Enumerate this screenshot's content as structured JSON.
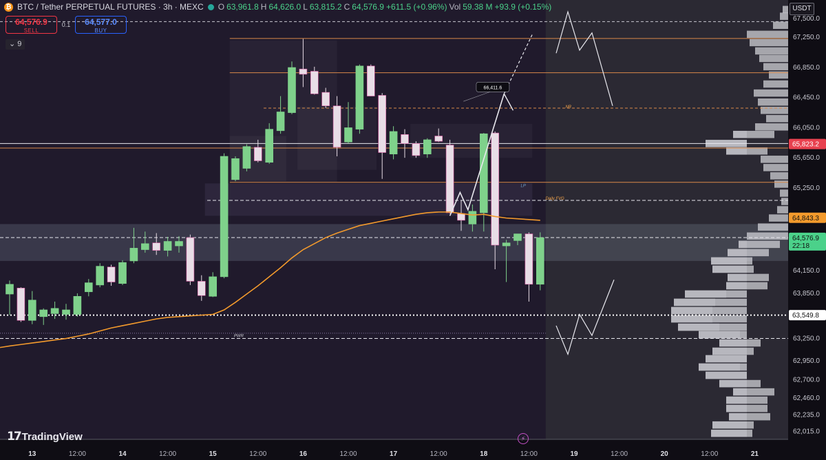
{
  "header": {
    "symbol": "BTC / Tether PERPETUAL FUTURES · 3h · MEXC",
    "open_label": "O",
    "open": "63,961.8",
    "high_label": "H",
    "high": "64,626.0",
    "low_label": "L",
    "low": "63,815.2",
    "close_label": "C",
    "close": "64,576.9",
    "change": "+611.5 (+0.96%)",
    "vol_label": "Vol",
    "vol": "59.38 M",
    "vol_change": "+93.9 (+0.15%)"
  },
  "trade": {
    "sell_price": "64,576.9",
    "sell_label": "SELL",
    "quantity": "0.1",
    "buy_price": "64,577.0",
    "buy_label": "BUY"
  },
  "indicator_toggle": "9",
  "brand": "TradingView",
  "currency": "USDT",
  "colors": {
    "up": "#7fd18b",
    "down": "#e8dde6",
    "ema": "#f39a2c",
    "background": "#1a1624"
  },
  "chart_data": {
    "type": "candlestick",
    "ylim": [
      61900,
      67700
    ],
    "y_ticks": [
      67500,
      67250,
      66850,
      66450,
      66050,
      65650,
      65250,
      64150,
      63850,
      63250,
      62950,
      62700,
      62460,
      62235,
      62015
    ],
    "y_tick_labels": [
      "67,500.0",
      "67,250.0",
      "66,850.0",
      "66,450.0",
      "66,050.0",
      "65,650.0",
      "65,250.0",
      "64,150.0",
      "63,850.0",
      "63,250.0",
      "62,950.0",
      "62,700.0",
      "62,460.0",
      "62,235.0",
      "62,015.0"
    ],
    "price_tags": [
      {
        "value": 65823.2,
        "label": "65,823.2",
        "style": "red"
      },
      {
        "value": 64843.3,
        "label": "64,843.3",
        "style": "orange"
      },
      {
        "value": 64576.9,
        "label": "64,576.9",
        "sub": "22:18",
        "style": "green"
      },
      {
        "value": 63549.8,
        "label": "63,549.8",
        "style": "white"
      }
    ],
    "x_ticks": [
      {
        "idx": 2,
        "label": "13"
      },
      {
        "idx": 6,
        "label": "12:00"
      },
      {
        "idx": 10,
        "label": "14"
      },
      {
        "idx": 14,
        "label": "12:00"
      },
      {
        "idx": 18,
        "label": "15"
      },
      {
        "idx": 22,
        "label": "12:00"
      },
      {
        "idx": 26,
        "label": "16"
      },
      {
        "idx": 30,
        "label": "12:00"
      },
      {
        "idx": 34,
        "label": "17"
      },
      {
        "idx": 38,
        "label": "12:00"
      },
      {
        "idx": 42,
        "label": "18"
      },
      {
        "idx": 46,
        "label": "12:00"
      },
      {
        "idx": 50,
        "label": "19"
      },
      {
        "idx": 54,
        "label": "12:00"
      },
      {
        "idx": 58,
        "label": "20"
      },
      {
        "idx": 62,
        "label": "12:00"
      },
      {
        "idx": 66,
        "label": "21"
      }
    ],
    "candles": [
      {
        "o": 63830,
        "h": 64010,
        "l": 63550,
        "c": 63960
      },
      {
        "o": 63910,
        "h": 63920,
        "l": 63460,
        "c": 63480
      },
      {
        "o": 63480,
        "h": 63870,
        "l": 63430,
        "c": 63750
      },
      {
        "o": 63530,
        "h": 63640,
        "l": 63420,
        "c": 63620
      },
      {
        "o": 63570,
        "h": 63730,
        "l": 63500,
        "c": 63640
      },
      {
        "o": 63560,
        "h": 63700,
        "l": 63490,
        "c": 63620
      },
      {
        "o": 63560,
        "h": 63840,
        "l": 63530,
        "c": 63800
      },
      {
        "o": 63860,
        "h": 64030,
        "l": 63800,
        "c": 63980
      },
      {
        "o": 63950,
        "h": 64240,
        "l": 63920,
        "c": 64200
      },
      {
        "o": 64190,
        "h": 64220,
        "l": 63940,
        "c": 63990
      },
      {
        "o": 63970,
        "h": 64280,
        "l": 63950,
        "c": 64250
      },
      {
        "o": 64270,
        "h": 64710,
        "l": 64240,
        "c": 64440
      },
      {
        "o": 64420,
        "h": 64660,
        "l": 64380,
        "c": 64500
      },
      {
        "o": 64510,
        "h": 64640,
        "l": 64350,
        "c": 64410
      },
      {
        "o": 64410,
        "h": 64590,
        "l": 64330,
        "c": 64530
      },
      {
        "o": 64470,
        "h": 64600,
        "l": 64380,
        "c": 64530
      },
      {
        "o": 64580,
        "h": 64620,
        "l": 63950,
        "c": 64000
      },
      {
        "o": 64000,
        "h": 64080,
        "l": 63740,
        "c": 63810
      },
      {
        "o": 63800,
        "h": 64120,
        "l": 63790,
        "c": 64060
      },
      {
        "o": 64060,
        "h": 65700,
        "l": 64040,
        "c": 65660
      },
      {
        "o": 65350,
        "h": 65660,
        "l": 65330,
        "c": 65630
      },
      {
        "o": 65500,
        "h": 65820,
        "l": 65460,
        "c": 65790
      },
      {
        "o": 65780,
        "h": 65880,
        "l": 65580,
        "c": 65600
      },
      {
        "o": 65580,
        "h": 66100,
        "l": 65560,
        "c": 66020
      },
      {
        "o": 66000,
        "h": 66460,
        "l": 65960,
        "c": 66250
      },
      {
        "o": 66240,
        "h": 66920,
        "l": 66220,
        "c": 66840
      },
      {
        "o": 66820,
        "h": 67220,
        "l": 66580,
        "c": 66750
      },
      {
        "o": 66790,
        "h": 66850,
        "l": 66480,
        "c": 66490
      },
      {
        "o": 66510,
        "h": 66570,
        "l": 66300,
        "c": 66330
      },
      {
        "o": 66330,
        "h": 66460,
        "l": 65660,
        "c": 65780
      },
      {
        "o": 65850,
        "h": 66380,
        "l": 65830,
        "c": 66040
      },
      {
        "o": 66020,
        "h": 66880,
        "l": 65960,
        "c": 66860
      },
      {
        "o": 66860,
        "h": 66880,
        "l": 66460,
        "c": 66460
      },
      {
        "o": 66470,
        "h": 66500,
        "l": 65360,
        "c": 65710
      },
      {
        "o": 65690,
        "h": 66060,
        "l": 65620,
        "c": 65990
      },
      {
        "o": 65950,
        "h": 66020,
        "l": 65640,
        "c": 65830
      },
      {
        "o": 65830,
        "h": 65860,
        "l": 65640,
        "c": 65670
      },
      {
        "o": 65690,
        "h": 65900,
        "l": 65640,
        "c": 65880
      },
      {
        "o": 65930,
        "h": 66030,
        "l": 65850,
        "c": 65860
      },
      {
        "o": 65810,
        "h": 65880,
        "l": 64900,
        "c": 64910
      },
      {
        "o": 64900,
        "h": 65070,
        "l": 64670,
        "c": 64810
      },
      {
        "o": 64760,
        "h": 65020,
        "l": 64660,
        "c": 64930
      },
      {
        "o": 64910,
        "h": 65970,
        "l": 64660,
        "c": 65960
      },
      {
        "o": 65970,
        "h": 65990,
        "l": 64160,
        "c": 64480
      },
      {
        "o": 64470,
        "h": 64550,
        "l": 63990,
        "c": 64510
      },
      {
        "o": 64540,
        "h": 64630,
        "l": 64480,
        "c": 64630
      },
      {
        "o": 64630,
        "h": 64650,
        "l": 63730,
        "c": 63960
      },
      {
        "o": 63960,
        "h": 64650,
        "l": 63880,
        "c": 64580
      }
    ],
    "ema": [
      63140,
      63160,
      63180,
      63200,
      63220,
      63240,
      63270,
      63300,
      63340,
      63380,
      63410,
      63440,
      63470,
      63500,
      63520,
      63530,
      63540,
      63550,
      63560,
      63620,
      63720,
      63830,
      63940,
      64060,
      64180,
      64310,
      64420,
      64500,
      64580,
      64640,
      64690,
      64740,
      64770,
      64800,
      64830,
      64860,
      64890,
      64910,
      64920,
      64920,
      64900,
      64880,
      64890,
      64860,
      64840,
      64830,
      64820,
      64810
    ],
    "levels": [
      {
        "y": 67225,
        "from_idx": 20,
        "style": "solid-orange"
      },
      {
        "y": 66770,
        "from_idx": 20,
        "style": "solid-orange"
      },
      {
        "y": 66300,
        "from_idx": 23,
        "style": "dashed-orange"
      },
      {
        "y": 65830,
        "from_idx": -1,
        "style": "solid-white"
      },
      {
        "y": 65770,
        "from_idx": -1,
        "style": "solid-orange"
      },
      {
        "y": 65315,
        "from_idx": 20,
        "style": "solid-orange"
      },
      {
        "y": 65075,
        "from_idx": 18,
        "style": "dashed-white"
      },
      {
        "y": 64580,
        "from_idx": -1,
        "style": "dashed-white"
      },
      {
        "y": 63550,
        "from_idx": -1,
        "style": "dotted-white"
      },
      {
        "y": 63240,
        "from_idx": -1,
        "style": "dashed-white"
      }
    ],
    "annotations": [
      {
        "text": "66,411.6",
        "idx": 42.8,
        "y": 66480,
        "type": "callout"
      },
      {
        "text": "NR",
        "idx": 49.5,
        "y": 66300,
        "type": "label"
      },
      {
        "text": "LP",
        "idx": 45.5,
        "y": 65255,
        "type": "label"
      },
      {
        "text": "Daily FVG",
        "idx": 48.3,
        "y": 65085,
        "type": "label"
      },
      {
        "text": "PWR",
        "idx": 20.3,
        "y": 63260,
        "type": "label"
      }
    ]
  }
}
